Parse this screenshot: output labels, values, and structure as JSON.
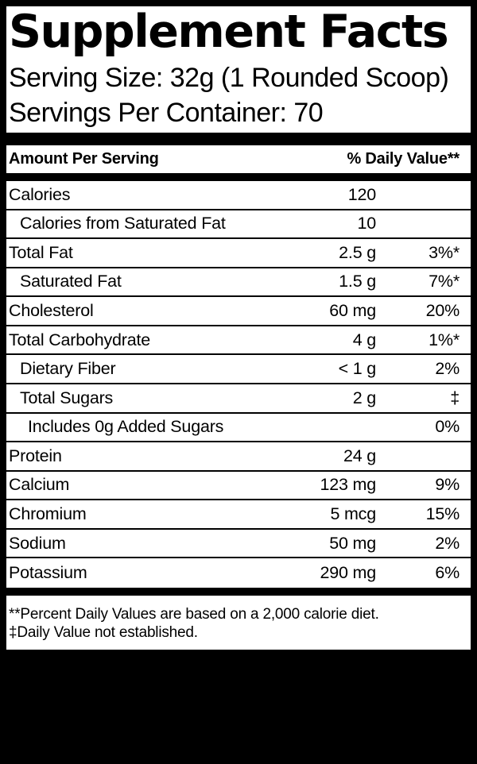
{
  "label": {
    "title": "Supplement Facts",
    "serving_size": "Serving Size: 32g (1 Rounded Scoop)",
    "servings_per_container": "Servings Per Container: 70",
    "columns": {
      "left": "Amount Per Serving",
      "right": "% Daily Value**"
    },
    "rows": [
      {
        "name": "Calories",
        "amount": "120",
        "dv": "",
        "indent": 0
      },
      {
        "name": "Calories from Saturated Fat",
        "amount": "10",
        "dv": "",
        "indent": 1
      },
      {
        "name": "Total Fat",
        "amount": "2.5 g",
        "dv": "3%*",
        "indent": 0
      },
      {
        "name": "Saturated Fat",
        "amount": "1.5 g",
        "dv": "7%*",
        "indent": 1
      },
      {
        "name": "Cholesterol",
        "amount": "60 mg",
        "dv": "20%",
        "indent": 0
      },
      {
        "name": "Total Carbohydrate",
        "amount": "4 g",
        "dv": "1%*",
        "indent": 0
      },
      {
        "name": "Dietary Fiber",
        "amount": "< 1 g",
        "dv": "2%",
        "indent": 1
      },
      {
        "name": "Total Sugars",
        "amount": "2 g",
        "dv": "‡",
        "indent": 1
      },
      {
        "name": "Includes 0g Added Sugars",
        "amount": "",
        "dv": "0%",
        "indent": 2
      },
      {
        "name": "Protein",
        "amount": "24 g",
        "dv": "",
        "indent": 0
      },
      {
        "name": "Calcium",
        "amount": "123 mg",
        "dv": "9%",
        "indent": 0
      },
      {
        "name": "Chromium",
        "amount": "5 mcg",
        "dv": "15%",
        "indent": 0
      },
      {
        "name": "Sodium",
        "amount": "50 mg",
        "dv": "2%",
        "indent": 0
      },
      {
        "name": "Potassium",
        "amount": "290 mg",
        "dv": "6%",
        "indent": 0
      }
    ],
    "footnotes": [
      "**Percent Daily Values are based on a 2,000 calorie diet.",
      "‡Daily Value not established."
    ]
  },
  "colors": {
    "canvas_background": "#000000",
    "label_background": "#ffffff",
    "text": "#000000"
  }
}
